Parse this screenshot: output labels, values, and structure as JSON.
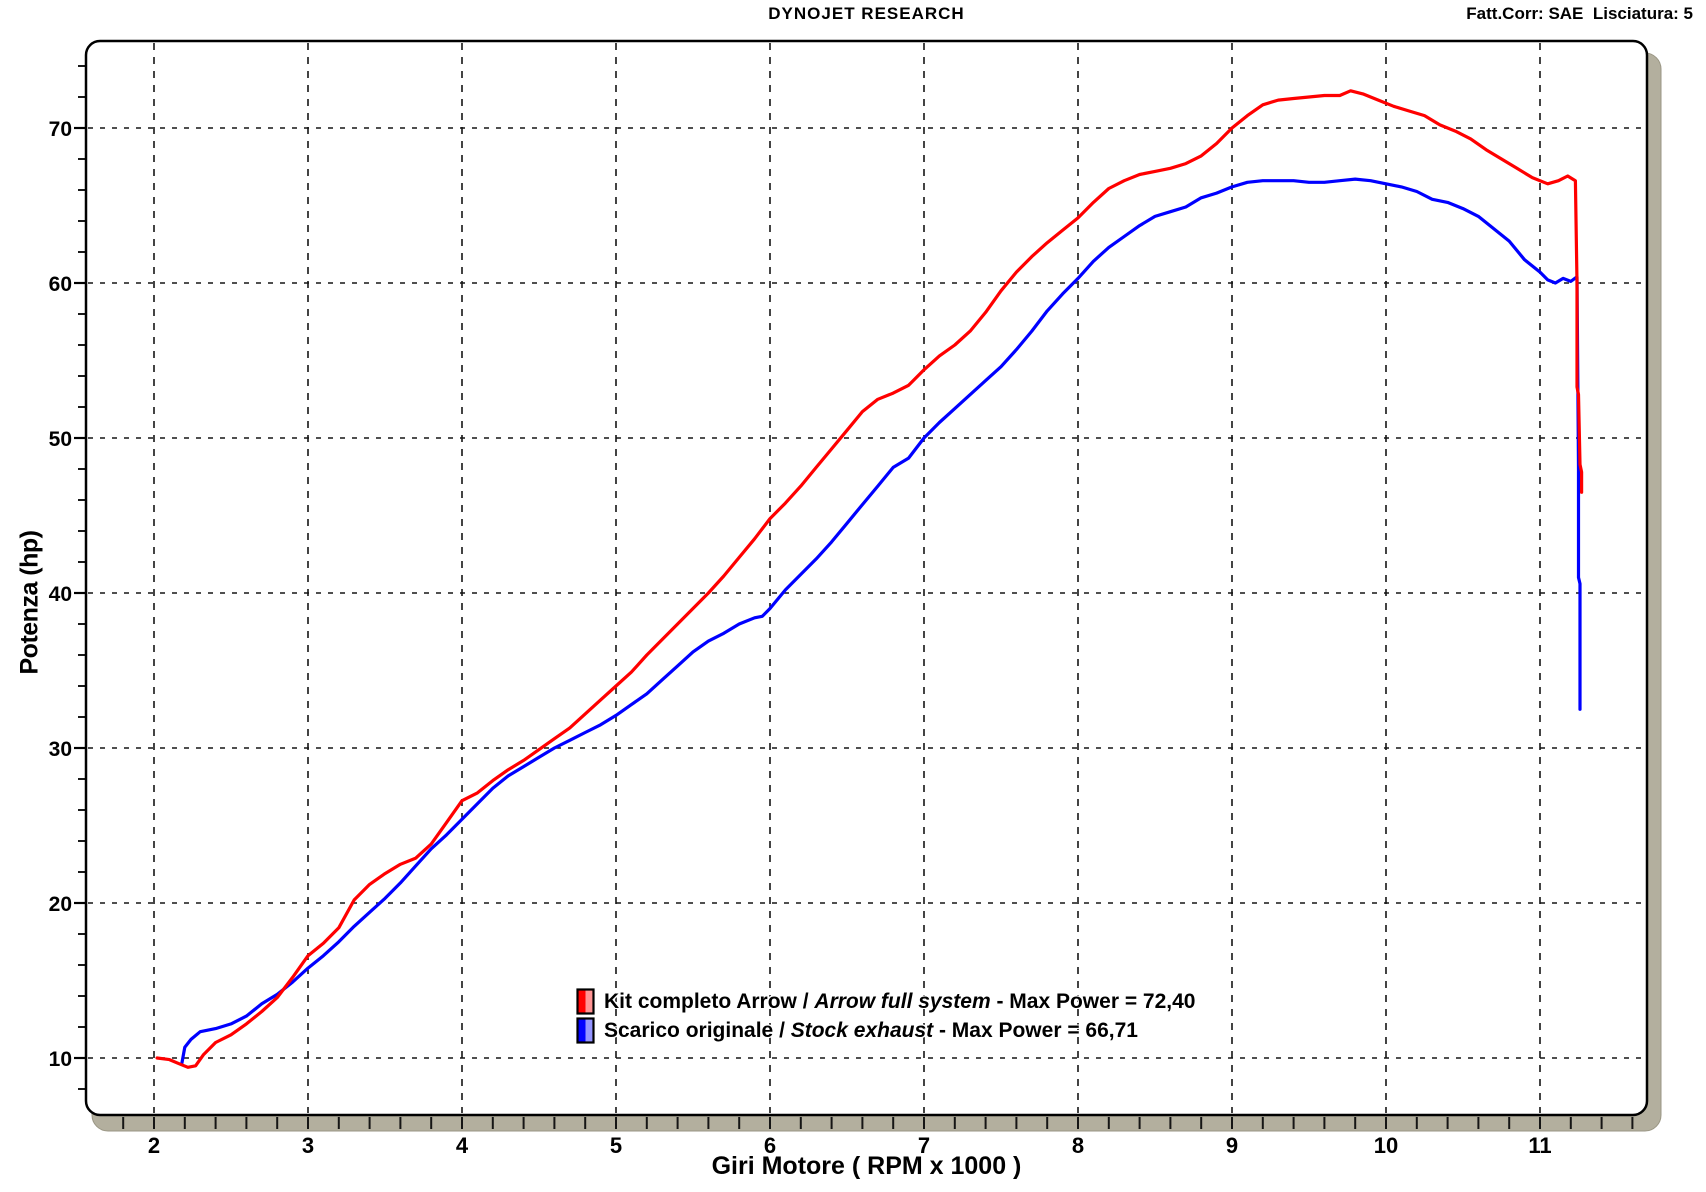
{
  "header": {
    "title": "DYNOJET RESEARCH",
    "correction_info": "Fatt.Corr: SAE  Lisciatura: 5"
  },
  "colors": {
    "arrow_curve": "#ff0000",
    "arrow_swatch_light": "#ff9494",
    "stock_curve": "#0000ff",
    "stock_swatch_light": "#9494ff",
    "grid": "#151515",
    "axis_bar": "#b3af9e",
    "background": "#ffffff"
  },
  "legend": {
    "rows": [
      {
        "prefix": "Kit completo Arrow / ",
        "italic": "Arrow full system",
        "suffix": " - Max Power = 72,40",
        "color": "#ff0000",
        "color_light": "#ff9494"
      },
      {
        "prefix": "Scarico originale / ",
        "italic": "Stock exhaust",
        "suffix": " - Max Power = 66,71",
        "color": "#0000ff",
        "color_light": "#9494ff"
      }
    ]
  },
  "chart_data": {
    "type": "line",
    "title": "DYNOJET RESEARCH",
    "correction_info": "Fatt.Corr: SAE  Lisciatura: 5",
    "xlabel": "Giri Motore ( RPM x 1000 )",
    "ylabel": "Potenza (hp)",
    "x_unit": "RPM x 1000",
    "y_unit": "hp",
    "xlim": [
      1.56,
      11.7
    ],
    "ylim": [
      6.3,
      75.6
    ],
    "x_ticks": [
      2,
      3,
      4,
      5,
      6,
      7,
      8,
      9,
      10,
      11
    ],
    "y_ticks": [
      10,
      20,
      30,
      40,
      50,
      60,
      70
    ],
    "x_minor_step": 0.2,
    "y_minor_step": 2,
    "grid": "dashed",
    "legend_position": "bottom-center-inside",
    "series": [
      {
        "name": "Kit completo Arrow / Arrow full system",
        "max_power": "72,40",
        "max_power_value": 72.4,
        "color": "#ff0000",
        "points": [
          [
            2.02,
            10.0
          ],
          [
            2.1,
            9.9
          ],
          [
            2.17,
            9.6
          ],
          [
            2.22,
            9.4
          ],
          [
            2.27,
            9.5
          ],
          [
            2.32,
            10.2
          ],
          [
            2.4,
            11.0
          ],
          [
            2.5,
            11.5
          ],
          [
            2.6,
            12.2
          ],
          [
            2.7,
            13.0
          ],
          [
            2.8,
            13.9
          ],
          [
            2.9,
            15.2
          ],
          [
            3.0,
            16.6
          ],
          [
            3.1,
            17.4
          ],
          [
            3.2,
            18.4
          ],
          [
            3.3,
            20.2
          ],
          [
            3.4,
            21.2
          ],
          [
            3.5,
            21.9
          ],
          [
            3.6,
            22.5
          ],
          [
            3.7,
            22.9
          ],
          [
            3.8,
            23.8
          ],
          [
            3.9,
            25.2
          ],
          [
            4.0,
            26.6
          ],
          [
            4.1,
            27.1
          ],
          [
            4.2,
            27.9
          ],
          [
            4.3,
            28.6
          ],
          [
            4.4,
            29.2
          ],
          [
            4.5,
            29.9
          ],
          [
            4.6,
            30.6
          ],
          [
            4.7,
            31.3
          ],
          [
            4.8,
            32.2
          ],
          [
            4.9,
            33.1
          ],
          [
            5.0,
            34.0
          ],
          [
            5.1,
            34.9
          ],
          [
            5.2,
            36.0
          ],
          [
            5.3,
            37.0
          ],
          [
            5.4,
            38.0
          ],
          [
            5.5,
            39.0
          ],
          [
            5.6,
            40.0
          ],
          [
            5.7,
            41.1
          ],
          [
            5.8,
            42.3
          ],
          [
            5.9,
            43.5
          ],
          [
            6.0,
            44.8
          ],
          [
            6.1,
            45.8
          ],
          [
            6.2,
            46.9
          ],
          [
            6.3,
            48.1
          ],
          [
            6.4,
            49.3
          ],
          [
            6.5,
            50.5
          ],
          [
            6.6,
            51.7
          ],
          [
            6.7,
            52.5
          ],
          [
            6.8,
            52.9
          ],
          [
            6.9,
            53.4
          ],
          [
            7.0,
            54.4
          ],
          [
            7.1,
            55.3
          ],
          [
            7.2,
            56.0
          ],
          [
            7.3,
            56.9
          ],
          [
            7.4,
            58.1
          ],
          [
            7.5,
            59.5
          ],
          [
            7.6,
            60.7
          ],
          [
            7.7,
            61.7
          ],
          [
            7.8,
            62.6
          ],
          [
            7.9,
            63.4
          ],
          [
            8.0,
            64.2
          ],
          [
            8.1,
            65.2
          ],
          [
            8.2,
            66.1
          ],
          [
            8.3,
            66.6
          ],
          [
            8.4,
            67.0
          ],
          [
            8.5,
            67.2
          ],
          [
            8.6,
            67.4
          ],
          [
            8.7,
            67.7
          ],
          [
            8.8,
            68.2
          ],
          [
            8.9,
            69.0
          ],
          [
            9.0,
            70.0
          ],
          [
            9.1,
            70.8
          ],
          [
            9.2,
            71.5
          ],
          [
            9.3,
            71.8
          ],
          [
            9.4,
            71.9
          ],
          [
            9.5,
            72.0
          ],
          [
            9.6,
            72.1
          ],
          [
            9.7,
            72.1
          ],
          [
            9.77,
            72.4
          ],
          [
            9.85,
            72.2
          ],
          [
            9.95,
            71.8
          ],
          [
            10.05,
            71.4
          ],
          [
            10.15,
            71.1
          ],
          [
            10.25,
            70.8
          ],
          [
            10.35,
            70.2
          ],
          [
            10.45,
            69.8
          ],
          [
            10.55,
            69.3
          ],
          [
            10.65,
            68.6
          ],
          [
            10.75,
            68.0
          ],
          [
            10.85,
            67.4
          ],
          [
            10.95,
            66.8
          ],
          [
            11.05,
            66.4
          ],
          [
            11.12,
            66.6
          ],
          [
            11.18,
            66.9
          ],
          [
            11.23,
            66.6
          ],
          [
            11.24,
            60.0
          ],
          [
            11.24,
            53.3
          ],
          [
            11.25,
            52.8
          ],
          [
            11.26,
            48.3
          ],
          [
            11.27,
            47.8
          ],
          [
            11.27,
            46.5
          ]
        ]
      },
      {
        "name": "Scarico originale / Stock exhaust",
        "max_power": "66,71",
        "max_power_value": 66.71,
        "color": "#0000ff",
        "points": [
          [
            2.18,
            9.6
          ],
          [
            2.2,
            10.7
          ],
          [
            2.24,
            11.2
          ],
          [
            2.3,
            11.7
          ],
          [
            2.4,
            11.9
          ],
          [
            2.5,
            12.2
          ],
          [
            2.6,
            12.7
          ],
          [
            2.7,
            13.5
          ],
          [
            2.8,
            14.1
          ],
          [
            2.9,
            14.9
          ],
          [
            3.0,
            15.8
          ],
          [
            3.1,
            16.6
          ],
          [
            3.2,
            17.5
          ],
          [
            3.3,
            18.5
          ],
          [
            3.4,
            19.4
          ],
          [
            3.5,
            20.3
          ],
          [
            3.6,
            21.3
          ],
          [
            3.7,
            22.4
          ],
          [
            3.8,
            23.5
          ],
          [
            3.9,
            24.4
          ],
          [
            4.0,
            25.4
          ],
          [
            4.1,
            26.4
          ],
          [
            4.2,
            27.4
          ],
          [
            4.3,
            28.2
          ],
          [
            4.4,
            28.8
          ],
          [
            4.5,
            29.4
          ],
          [
            4.6,
            30.0
          ],
          [
            4.7,
            30.5
          ],
          [
            4.8,
            31.0
          ],
          [
            4.9,
            31.5
          ],
          [
            5.0,
            32.1
          ],
          [
            5.1,
            32.8
          ],
          [
            5.2,
            33.5
          ],
          [
            5.3,
            34.4
          ],
          [
            5.4,
            35.3
          ],
          [
            5.5,
            36.2
          ],
          [
            5.6,
            36.9
          ],
          [
            5.7,
            37.4
          ],
          [
            5.8,
            38.0
          ],
          [
            5.9,
            38.4
          ],
          [
            5.95,
            38.5
          ],
          [
            6.0,
            39.0
          ],
          [
            6.1,
            40.2
          ],
          [
            6.2,
            41.2
          ],
          [
            6.3,
            42.2
          ],
          [
            6.4,
            43.3
          ],
          [
            6.5,
            44.5
          ],
          [
            6.6,
            45.7
          ],
          [
            6.7,
            46.9
          ],
          [
            6.8,
            48.1
          ],
          [
            6.9,
            48.7
          ],
          [
            7.0,
            50.0
          ],
          [
            7.1,
            51.0
          ],
          [
            7.2,
            51.9
          ],
          [
            7.3,
            52.8
          ],
          [
            7.4,
            53.7
          ],
          [
            7.5,
            54.6
          ],
          [
            7.6,
            55.7
          ],
          [
            7.7,
            56.9
          ],
          [
            7.8,
            58.2
          ],
          [
            7.9,
            59.3
          ],
          [
            8.0,
            60.3
          ],
          [
            8.1,
            61.4
          ],
          [
            8.2,
            62.3
          ],
          [
            8.3,
            63.0
          ],
          [
            8.4,
            63.7
          ],
          [
            8.5,
            64.3
          ],
          [
            8.6,
            64.6
          ],
          [
            8.7,
            64.9
          ],
          [
            8.8,
            65.5
          ],
          [
            8.9,
            65.8
          ],
          [
            9.0,
            66.2
          ],
          [
            9.1,
            66.5
          ],
          [
            9.2,
            66.6
          ],
          [
            9.3,
            66.6
          ],
          [
            9.4,
            66.6
          ],
          [
            9.5,
            66.5
          ],
          [
            9.6,
            66.5
          ],
          [
            9.7,
            66.6
          ],
          [
            9.8,
            66.7
          ],
          [
            9.9,
            66.6
          ],
          [
            10.0,
            66.4
          ],
          [
            10.1,
            66.2
          ],
          [
            10.2,
            65.9
          ],
          [
            10.3,
            65.4
          ],
          [
            10.4,
            65.2
          ],
          [
            10.5,
            64.8
          ],
          [
            10.6,
            64.3
          ],
          [
            10.7,
            63.5
          ],
          [
            10.8,
            62.7
          ],
          [
            10.9,
            61.5
          ],
          [
            11.0,
            60.7
          ],
          [
            11.05,
            60.2
          ],
          [
            11.1,
            60.0
          ],
          [
            11.15,
            60.3
          ],
          [
            11.2,
            60.1
          ],
          [
            11.24,
            60.4
          ],
          [
            11.25,
            48.0
          ],
          [
            11.25,
            41.0
          ],
          [
            11.26,
            40.6
          ],
          [
            11.26,
            32.5
          ]
        ]
      }
    ]
  }
}
